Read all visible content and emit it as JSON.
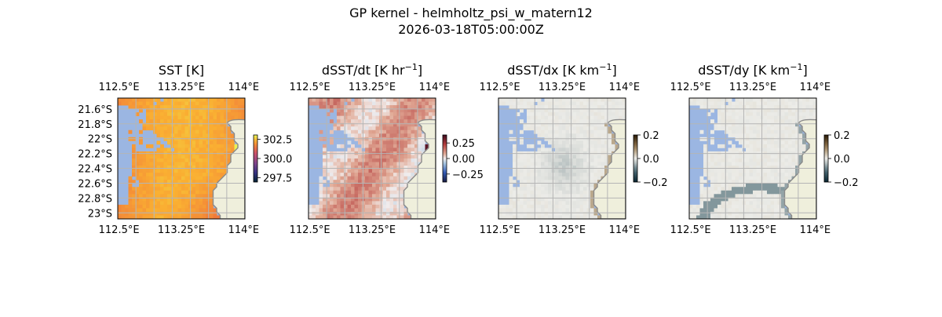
{
  "figure": {
    "title_line1": "GP kernel - helmholtz_psi_w_matern12",
    "title_line2": "2026-03-18T05:00:00Z"
  },
  "colors": {
    "ocean": "#9bb6e2",
    "land": "#efefdc",
    "coast": "#8a8a8a",
    "grid": "#b5b5b5"
  },
  "chart_data": [
    {
      "type": "heatmap",
      "panel_id": "sst",
      "title": "SST [K]",
      "xticks": [
        "112.5°E",
        "113.25°E",
        "114°E"
      ],
      "yticks": [
        "21.6°S",
        "21.8°S",
        "22°S",
        "22.2°S",
        "22.4°S",
        "22.6°S",
        "22.8°S",
        "23°S"
      ],
      "lon_range": [
        112.5,
        114.0
      ],
      "lat_range": [
        -23.0,
        -21.55
      ],
      "colorbar": {
        "cmap": "thermal",
        "ticks": [
          "302.5",
          "300.0",
          "297.5"
        ],
        "range": [
          296.8,
          303.2
        ]
      },
      "field": "SST ~ 300-302 K, warmest in north, cooler band toward south-east"
    },
    {
      "type": "heatmap",
      "panel_id": "dsst_dt",
      "title": "dSST/dt [K hr",
      "title_sup": "−1",
      "title_tail": "]",
      "xticks": [
        "112.5°E",
        "113.25°E",
        "114°E"
      ],
      "lon_range": [
        112.5,
        114.0
      ],
      "lat_range": [
        -23.0,
        -21.55
      ],
      "colorbar": {
        "cmap": "balance",
        "ticks": [
          "0.25",
          "0.00",
          "−0.25"
        ],
        "range": [
          -0.38,
          0.38
        ]
      },
      "field": "mostly small positive tendency, ~0.05-0.15"
    },
    {
      "type": "heatmap",
      "panel_id": "dsst_dx",
      "title": "dSST/dx [K km",
      "title_sup": "−1",
      "title_tail": "]",
      "xticks": [
        "112.5°E",
        "113.25°E",
        "114°E"
      ],
      "lon_range": [
        112.5,
        114.0
      ],
      "lat_range": [
        -23.0,
        -21.55
      ],
      "colorbar": {
        "cmap": "diff",
        "ticks": [
          "0.2",
          "0.0",
          "−0.2"
        ],
        "range": [
          -0.2,
          0.2
        ]
      },
      "field": "near zero everywhere"
    },
    {
      "type": "heatmap",
      "panel_id": "dsst_dy",
      "title": "dSST/dy [K km",
      "title_sup": "−1",
      "title_tail": "]",
      "xticks": [
        "112.5°E",
        "113.25°E",
        "114°E"
      ],
      "lon_range": [
        112.5,
        114.0
      ],
      "lat_range": [
        -23.0,
        -21.55
      ],
      "colorbar": {
        "cmap": "diff",
        "ticks": [
          "0.2",
          "0.0",
          "−0.2"
        ],
        "range": [
          -0.2,
          0.2
        ]
      },
      "field": "near zero, weak negative arc in south"
    }
  ]
}
